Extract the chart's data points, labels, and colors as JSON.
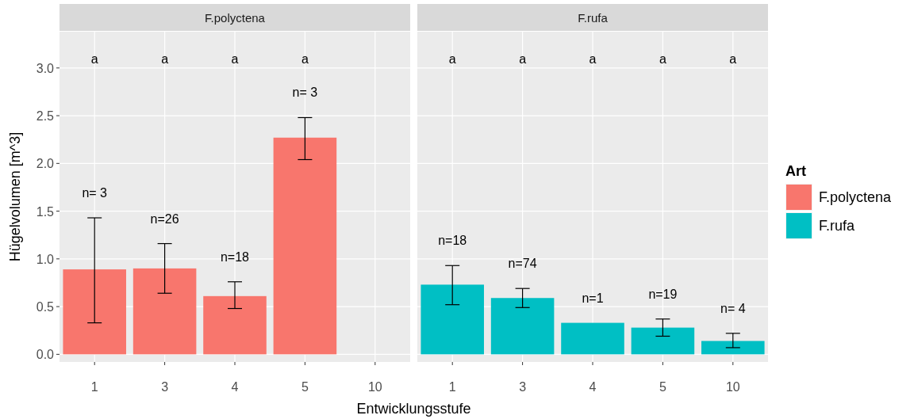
{
  "chart_data": [
    {
      "type": "bar",
      "title": "F.polyctena",
      "xlabel": "Entwicklungsstufe",
      "ylabel": "Hügelvolumen [m^3]",
      "legend_title": "Art",
      "legend": "right",
      "grid": true,
      "categories": [
        "1",
        "3",
        "4",
        "5",
        "10"
      ],
      "series": [
        {
          "name": "F.polyctena",
          "color": "#f8766d",
          "values": [
            0.89,
            0.9,
            0.61,
            2.27,
            null
          ],
          "errors": [
            [
              0.33,
              1.43
            ],
            [
              0.64,
              1.16
            ],
            [
              0.48,
              0.76
            ],
            [
              2.04,
              2.48
            ],
            null
          ]
        }
      ],
      "ylim": [
        -0.08,
        3.38
      ],
      "yticks": [
        {
          "value": 0,
          "label": "0.0"
        },
        {
          "value": 0.5,
          "label": "0.5"
        },
        {
          "value": 1,
          "label": "1.0"
        },
        {
          "value": 1.5,
          "label": "1.5"
        },
        {
          "value": 2,
          "label": "2.0"
        },
        {
          "value": 2.5,
          "label": "2.5"
        },
        {
          "value": 3,
          "label": "3.0"
        }
      ],
      "annotations": [
        "a",
        "a",
        "a",
        "a",
        "n= 3",
        "n=26",
        "n=18",
        "n= 3"
      ]
    },
    {
      "type": "bar",
      "title": "F.rufa",
      "grid": true,
      "tick_labels": "x",
      "categories": [
        "1",
        "3",
        "4",
        "5",
        "10"
      ],
      "series": [
        {
          "name": "F.rufa",
          "color": "#00bfc4",
          "values": [
            0.73,
            0.59,
            0.33,
            0.28,
            0.14
          ],
          "errors": [
            [
              0.52,
              0.93
            ],
            [
              0.49,
              0.69
            ],
            null,
            [
              0.19,
              0.37
            ],
            [
              0.07,
              0.22
            ]
          ]
        }
      ],
      "ylim": [
        -0.08,
        3.38
      ],
      "yticks": [
        0,
        0.5,
        1,
        1.5,
        2,
        2.5,
        3
      ],
      "annotations": [
        "a",
        "a",
        "a",
        "a",
        "a",
        "n=18",
        "n=74",
        "n=1",
        "n=19",
        "n= 4"
      ]
    }
  ]
}
